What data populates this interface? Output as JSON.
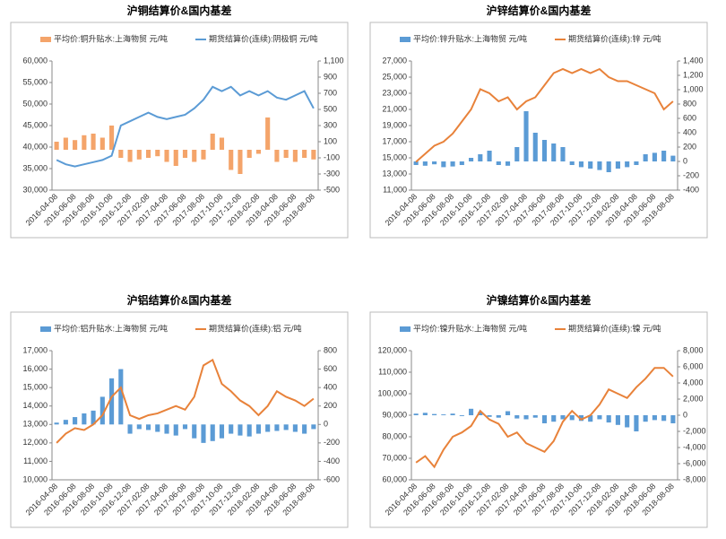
{
  "chart_data": [
    {
      "type": "combo",
      "title": "沪铜结算价&国内基差",
      "x": [
        "2016-04-08",
        "2016-05-08",
        "2016-06-08",
        "2016-07-08",
        "2016-08-08",
        "2016-09-08",
        "2016-10-08",
        "2016-11-08",
        "2016-12-08",
        "2017-01-08",
        "2017-02-08",
        "2017-03-08",
        "2017-04-08",
        "2017-05-08",
        "2017-06-08",
        "2017-07-08",
        "2017-08-08",
        "2017-09-08",
        "2017-10-08",
        "2017-11-08",
        "2017-12-08",
        "2018-01-08",
        "2018-02-08",
        "2018-03-08",
        "2018-04-08",
        "2018-05-08",
        "2018-06-08",
        "2018-07-08",
        "2018-08-08"
      ],
      "xticks": [
        "2016-04-08",
        "2016-06-08",
        "2016-08-08",
        "2016-10-08",
        "2016-12-08",
        "2017-02-08",
        "2017-04-08",
        "2017-06-08",
        "2017-08-08",
        "2017-10-08",
        "2017-12-08",
        "2018-02-08",
        "2018-04-08",
        "2018-06-08",
        "2018-08-08"
      ],
      "ylim": [
        30000,
        60000
      ],
      "yticks": [
        {
          "value": 30000,
          "label": "30,000"
        },
        {
          "value": 35000,
          "label": "35,000"
        },
        {
          "value": 40000,
          "label": "40,000"
        },
        {
          "value": 45000,
          "label": "45,000"
        },
        {
          "value": 50000,
          "label": "50,000"
        },
        {
          "value": 55000,
          "label": "55,000"
        },
        {
          "value": 60000,
          "label": "60,000"
        }
      ],
      "y2lim": [
        -500,
        1100
      ],
      "y2ticks": [
        -500,
        -300,
        -100,
        100,
        300,
        500,
        700,
        900,
        {
          "value": 1100,
          "label": "1,100"
        }
      ],
      "series": [
        {
          "name": "平均价:铜升贴水:上海物贸  元/吨",
          "mark": "bar",
          "axis": "y2",
          "color": "#f4a46a",
          "values": [
            100,
            150,
            120,
            180,
            200,
            150,
            300,
            -100,
            -150,
            -120,
            -100,
            -80,
            -150,
            -200,
            -100,
            -150,
            -120,
            200,
            150,
            -250,
            -300,
            -100,
            -50,
            400,
            -150,
            -100,
            -150,
            -100,
            -120
          ]
        },
        {
          "name": "期货结算价(连续):阴极铜  元/吨",
          "mark": "line",
          "axis": "y",
          "color": "#5b9bd5",
          "values": [
            37000,
            36000,
            35500,
            36000,
            36500,
            37000,
            38000,
            45000,
            46000,
            47000,
            48000,
            47000,
            46500,
            47000,
            47500,
            49000,
            51000,
            54000,
            53000,
            54000,
            52000,
            53000,
            52000,
            53000,
            51500,
            51000,
            52000,
            53000,
            49000
          ]
        }
      ]
    },
    {
      "type": "combo",
      "title": "沪锌结算价&国内基差",
      "x": [
        "2016-04-08",
        "2016-05-08",
        "2016-06-08",
        "2016-07-08",
        "2016-08-08",
        "2016-09-08",
        "2016-10-08",
        "2016-11-08",
        "2016-12-08",
        "2017-01-08",
        "2017-02-08",
        "2017-03-08",
        "2017-04-08",
        "2017-05-08",
        "2017-06-08",
        "2017-07-08",
        "2017-08-08",
        "2017-09-08",
        "2017-10-08",
        "2017-11-08",
        "2017-12-08",
        "2018-01-08",
        "2018-02-08",
        "2018-03-08",
        "2018-04-08",
        "2018-05-08",
        "2018-06-08",
        "2018-07-08",
        "2018-08-08"
      ],
      "xticks": [
        "2016-04-08",
        "2016-06-08",
        "2016-08-08",
        "2016-10-08",
        "2016-12-08",
        "2017-02-08",
        "2017-04-08",
        "2017-06-08",
        "2017-08-08",
        "2017-10-08",
        "2017-12-08",
        "2018-02-08",
        "2018-04-08",
        "2018-06-08",
        "2018-08-08"
      ],
      "ylim": [
        11000,
        27000
      ],
      "yticks": [
        {
          "value": 11000,
          "label": "11,000"
        },
        {
          "value": 13000,
          "label": "13,000"
        },
        {
          "value": 15000,
          "label": "15,000"
        },
        {
          "value": 17000,
          "label": "17,000"
        },
        {
          "value": 19000,
          "label": "19,000"
        },
        {
          "value": 21000,
          "label": "21,000"
        },
        {
          "value": 23000,
          "label": "23,000"
        },
        {
          "value": 25000,
          "label": "25,000"
        },
        {
          "value": 27000,
          "label": "27,000"
        }
      ],
      "y2lim": [
        -400,
        1400
      ],
      "y2ticks": [
        -400,
        -200,
        0,
        200,
        400,
        600,
        800,
        {
          "value": 1000,
          "label": "1,000"
        },
        {
          "value": 1200,
          "label": "1,200"
        },
        {
          "value": 1400,
          "label": "1,400"
        }
      ],
      "series": [
        {
          "name": "平均价:锌升贴水:上海物贸  元/吨",
          "mark": "bar",
          "axis": "y2",
          "color": "#5b9bd5",
          "values": [
            -50,
            -60,
            -40,
            -80,
            -70,
            -50,
            50,
            100,
            150,
            -50,
            -60,
            200,
            700,
            400,
            300,
            250,
            200,
            -50,
            -80,
            -100,
            -120,
            -150,
            -100,
            -80,
            -50,
            100,
            120,
            150,
            80
          ]
        },
        {
          "name": "期货结算价(连续):锌  元/吨",
          "mark": "line",
          "axis": "y",
          "color": "#e8823a",
          "values": [
            14500,
            15500,
            16500,
            17000,
            18000,
            19500,
            21000,
            23500,
            23000,
            22000,
            22500,
            21000,
            22000,
            22500,
            24000,
            25500,
            26000,
            25500,
            26000,
            25500,
            26000,
            25000,
            24500,
            24500,
            24000,
            23500,
            23000,
            21000,
            22000
          ]
        }
      ]
    },
    {
      "type": "combo",
      "title": "沪铝结算价&国内基差",
      "x": [
        "2016-04-08",
        "2016-05-08",
        "2016-06-08",
        "2016-07-08",
        "2016-08-08",
        "2016-09-08",
        "2016-10-08",
        "2016-11-08",
        "2016-12-08",
        "2017-01-08",
        "2017-02-08",
        "2017-03-08",
        "2017-04-08",
        "2017-05-08",
        "2017-06-08",
        "2017-07-08",
        "2017-08-08",
        "2017-09-08",
        "2017-10-08",
        "2017-11-08",
        "2017-12-08",
        "2018-01-08",
        "2018-02-08",
        "2018-03-08",
        "2018-04-08",
        "2018-05-08",
        "2018-06-08",
        "2018-07-08",
        "2018-08-08"
      ],
      "xticks": [
        "2016-04-08",
        "2016-06-08",
        "2016-08-08",
        "2016-10-08",
        "2016-12-08",
        "2017-02-08",
        "2017-04-08",
        "2017-06-08",
        "2017-08-08",
        "2017-10-08",
        "2017-12-08",
        "2018-02-08",
        "2018-04-08",
        "2018-06-08",
        "2018-08-08"
      ],
      "ylim": [
        10000,
        17000
      ],
      "yticks": [
        {
          "value": 10000,
          "label": "10,000"
        },
        {
          "value": 11000,
          "label": "11,000"
        },
        {
          "value": 12000,
          "label": "12,000"
        },
        {
          "value": 13000,
          "label": "13,000"
        },
        {
          "value": 14000,
          "label": "14,000"
        },
        {
          "value": 15000,
          "label": "15,000"
        },
        {
          "value": 16000,
          "label": "16,000"
        },
        {
          "value": 17000,
          "label": "17,000"
        }
      ],
      "y2lim": [
        -600,
        800
      ],
      "y2ticks": [
        -600,
        -400,
        -200,
        0,
        200,
        400,
        600,
        800
      ],
      "series": [
        {
          "name": "平均价:铝升贴水:上海物贸  元/吨",
          "mark": "bar",
          "axis": "y2",
          "color": "#5b9bd5",
          "values": [
            20,
            50,
            80,
            120,
            150,
            300,
            500,
            600,
            -100,
            -50,
            -60,
            -80,
            -100,
            -120,
            -50,
            -150,
            -200,
            -180,
            -150,
            -100,
            -120,
            -130,
            -100,
            -80,
            -70,
            -60,
            -80,
            -100,
            -50
          ]
        },
        {
          "name": "期货结算价(连续):铝  元/吨",
          "mark": "line",
          "axis": "y",
          "color": "#e8823a",
          "values": [
            12000,
            12500,
            12800,
            12700,
            13000,
            13500,
            14500,
            15000,
            13500,
            13300,
            13500,
            13600,
            13800,
            14000,
            13800,
            14500,
            16200,
            16500,
            15200,
            14800,
            14300,
            14000,
            13500,
            14000,
            14800,
            14500,
            14300,
            14000,
            14400
          ]
        }
      ]
    },
    {
      "type": "combo",
      "title": "沪镍结算价&国内基差",
      "x": [
        "2016-04-08",
        "2016-05-08",
        "2016-06-08",
        "2016-07-08",
        "2016-08-08",
        "2016-09-08",
        "2016-10-08",
        "2016-11-08",
        "2016-12-08",
        "2017-01-08",
        "2017-02-08",
        "2017-03-08",
        "2017-04-08",
        "2017-05-08",
        "2017-06-08",
        "2017-07-08",
        "2017-08-08",
        "2017-09-08",
        "2017-10-08",
        "2017-11-08",
        "2017-12-08",
        "2018-01-08",
        "2018-02-08",
        "2018-03-08",
        "2018-04-08",
        "2018-05-08",
        "2018-06-08",
        "2018-07-08",
        "2018-08-08"
      ],
      "xticks": [
        "2016-04-08",
        "2016-06-08",
        "2016-08-08",
        "2016-10-08",
        "2016-12-08",
        "2017-02-08",
        "2017-04-08",
        "2017-06-08",
        "2017-08-08",
        "2017-10-08",
        "2017-12-08",
        "2018-02-08",
        "2018-04-08",
        "2018-06-08",
        "2018-08-08"
      ],
      "ylim": [
        60000,
        120000
      ],
      "yticks": [
        {
          "value": 60000,
          "label": "60,000"
        },
        {
          "value": 70000,
          "label": "70,000"
        },
        {
          "value": 80000,
          "label": "80,000"
        },
        {
          "value": 90000,
          "label": "90,000"
        },
        {
          "value": 100000,
          "label": "100,000"
        },
        {
          "value": 110000,
          "label": "110,000"
        },
        {
          "value": 120000,
          "label": "120,000"
        }
      ],
      "y2lim": [
        -8000,
        8000
      ],
      "y2ticks": [
        {
          "value": -8000,
          "label": "-8,000"
        },
        {
          "value": -6000,
          "label": "-6,000"
        },
        {
          "value": -4000,
          "label": "-4,000"
        },
        {
          "value": -2000,
          "label": "-2,000"
        },
        0,
        {
          "value": 2000,
          "label": "2,000"
        },
        {
          "value": 4000,
          "label": "4,000"
        },
        {
          "value": 6000,
          "label": "6,000"
        },
        {
          "value": 8000,
          "label": "8,000"
        }
      ],
      "series": [
        {
          "name": "平均价:镍升贴水:上海物贸  元/吨",
          "mark": "bar",
          "axis": "y2",
          "color": "#5b9bd5",
          "values": [
            200,
            300,
            150,
            100,
            200,
            -100,
            800,
            400,
            -200,
            -300,
            500,
            -400,
            -500,
            -300,
            -1000,
            -800,
            -500,
            -600,
            -700,
            -800,
            -500,
            -900,
            -1200,
            -1500,
            -2000,
            -800,
            -600,
            -700,
            -1000
          ]
        },
        {
          "name": "期货结算价(连续):镍  元/吨",
          "mark": "line",
          "axis": "y",
          "color": "#e8823a",
          "values": [
            68000,
            71000,
            66000,
            74000,
            80000,
            82000,
            85000,
            92000,
            88000,
            86000,
            80000,
            82000,
            77000,
            75000,
            73000,
            78000,
            87000,
            92000,
            88000,
            90000,
            95000,
            102000,
            100000,
            98000,
            103000,
            107000,
            112000,
            112000,
            108000
          ]
        }
      ]
    }
  ]
}
